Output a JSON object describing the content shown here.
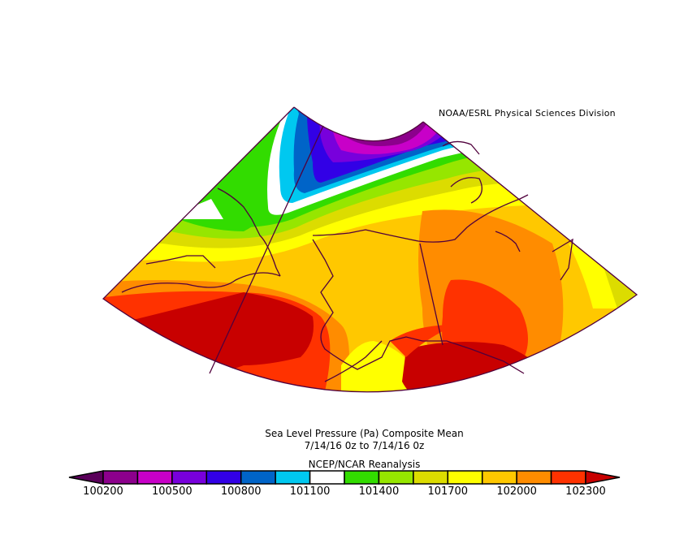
{
  "credit": "NOAA/ESRL Physical Sciences Division",
  "title": {
    "line1": "Sea Level Pressure (Pa)   Composite Mean",
    "line2": "7/14/16 0z  to 7/14/16 0z",
    "line3": "NCEP/NCAR Reanalysis"
  },
  "colorbar": {
    "labels": [
      "100200",
      "100500",
      "100800",
      "101100",
      "101400",
      "101700",
      "102000",
      "102300"
    ],
    "levels": [
      100200,
      100300,
      100400,
      100500,
      100600,
      100700,
      100800,
      100900,
      101000,
      101100,
      101200,
      101300,
      101400,
      101500,
      101600,
      101700,
      101800,
      101900,
      102000,
      102100,
      102200,
      102300
    ],
    "colors": {
      "below": "#5a005a",
      "segments": [
        "#8c008c",
        "#c800c8",
        "#7800dc",
        "#3200e6",
        "#0064c8",
        "#00c8f0",
        "#ffffff",
        "#32dc00",
        "#96e600",
        "#dcdc00",
        "#ffff00",
        "#ffc800",
        "#ff8c00",
        "#ff3200"
      ],
      "above": "#c80000"
    }
  },
  "map": {
    "variable": "Sea Level Pressure",
    "units": "Pa",
    "region": "Alaska / Bering Sea / Arctic",
    "features": {
      "low_center": "Arctic Ocean north of Alaska (< 100200 Pa)",
      "high_center_sw": "Bering Sea / Aleutians (> 102300 Pa)",
      "high_center_se": "Gulf of Alaska (> 102300 Pa)"
    },
    "coastline_color": "#50003c"
  }
}
